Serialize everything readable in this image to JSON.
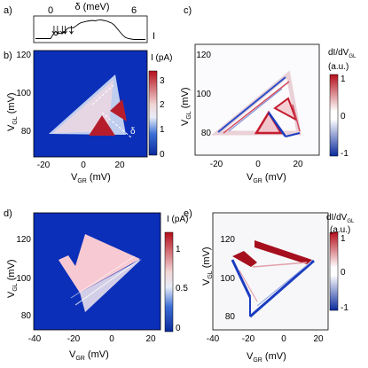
{
  "panels": {
    "a": {
      "label": "a)",
      "xlabel": "δ (meV)",
      "tick_left": "0",
      "tick_right": "6",
      "ylabel": "I",
      "chart_data": {
        "type": "line",
        "xlim": [
          0,
          6
        ],
        "x": [
          0,
          0.2,
          0.4,
          0.6,
          0.8,
          1.0,
          1.2,
          1.4,
          1.6,
          1.8,
          2.0,
          2.2,
          2.4,
          2.6,
          2.8,
          3.0,
          3.2,
          3.4,
          3.6,
          3.8,
          4.0,
          4.2,
          4.4,
          4.6,
          4.8,
          5.0,
          5.2,
          5.4,
          5.6,
          5.8,
          6.0
        ],
        "y": [
          0.1,
          0.3,
          0.25,
          0.35,
          0.32,
          0.4,
          0.55,
          0.6,
          0.58,
          0.65,
          0.75,
          0.82,
          0.85,
          0.88,
          0.9,
          0.92,
          0.9,
          0.93,
          0.95,
          0.92,
          0.9,
          0.85,
          0.8,
          0.7,
          0.55,
          0.4,
          0.25,
          0.15,
          0.1,
          0.08,
          0.06
        ],
        "arrows_at": [
          0.25,
          0.5,
          0.85,
          1.05,
          1.5
        ]
      }
    },
    "b": {
      "label": "b)",
      "xlabel": "V",
      "xlabel_sub": "GR",
      "xlabel_unit": " (mV)",
      "ylabel": "V",
      "ylabel_sub": "GL",
      "ylabel_unit": " (mV)",
      "colorbar_title": "I (pA)",
      "annotation": "δ",
      "chart_data": {
        "type": "heatmap",
        "xlim": [
          -28,
          35
        ],
        "ylim": [
          68,
          125
        ],
        "xticks": [
          -20,
          0,
          20
        ],
        "yticks": [
          80,
          100,
          120
        ],
        "colorbar": {
          "min": 0,
          "max": 3.5,
          "ticks": [
            0,
            1,
            2,
            3
          ]
        },
        "background_value": 0.35,
        "regions": [
          {
            "kind": "triangle",
            "points": [
              [
                -17,
                81
              ],
              [
                20,
                111
              ],
              [
                26,
                79
              ]
            ],
            "value": 1.5
          },
          {
            "kind": "triangle",
            "points": [
              [
                3,
                79
              ],
              [
                10,
                89
              ],
              [
                18,
                79
              ]
            ],
            "value": 3.4
          },
          {
            "kind": "triangle",
            "points": [
              [
                16,
                92
              ],
              [
                23,
                98
              ],
              [
                26,
                87
              ]
            ],
            "value": 3.3
          }
        ]
      }
    },
    "c": {
      "label": "c)",
      "xlabel": "V",
      "xlabel_sub": "GR",
      "xlabel_unit": " (mV)",
      "ylabel": "V",
      "ylabel_sub": "GL",
      "ylabel_unit": " (mV)",
      "colorbar_title": "dI/dV",
      "colorbar_title_sub": "GL",
      "colorbar_unit": "(a.u.)",
      "chart_data": {
        "type": "heatmap",
        "xlim": [
          -28,
          35
        ],
        "ylim": [
          68,
          125
        ],
        "xticks": [
          -20,
          0,
          20
        ],
        "yticks": [
          80,
          100,
          120
        ],
        "colorbar": {
          "min": -1,
          "max": 1,
          "ticks": [
            -1,
            0,
            1
          ]
        },
        "background_value": 0,
        "regions": [
          {
            "kind": "triangle-outline",
            "points": [
              [
                -17,
                81
              ],
              [
                20,
                111
              ],
              [
                26,
                79
              ]
            ],
            "value": 0.8
          },
          {
            "kind": "triangle-outline",
            "points": [
              [
                3,
                79
              ],
              [
                10,
                89
              ],
              [
                18,
                79
              ]
            ],
            "value": -0.8
          }
        ]
      }
    },
    "d": {
      "label": "d)",
      "xlabel": "V",
      "xlabel_sub": "GR",
      "xlabel_unit": " (mV)",
      "ylabel": "V",
      "ylabel_sub": "GL",
      "ylabel_unit": " (mV)",
      "colorbar_title": "I (pA)",
      "chart_data": {
        "type": "heatmap",
        "xlim": [
          -40,
          27
        ],
        "ylim": [
          70,
          132
        ],
        "xticks": [
          -40,
          -20,
          0,
          20
        ],
        "yticks": [
          80,
          100,
          120
        ],
        "colorbar": {
          "min": 0,
          "max": 1.3,
          "ticks": [
            0,
            0.5,
            1
          ]
        },
        "background_value": 0.12,
        "regions": [
          {
            "kind": "polygon",
            "points": [
              [
                -27,
                110
              ],
              [
                -15,
                92
              ],
              [
                16,
                108
              ],
              [
                -13,
                124
              ],
              [
                -20,
                110
              ],
              [
                -23,
                122
              ]
            ],
            "value": 1.05
          },
          {
            "kind": "triangle",
            "points": [
              [
                -27,
                110
              ],
              [
                -15,
                92
              ],
              [
                -13,
                80
              ],
              [
                22,
                109
              ]
            ],
            "value": 0.75
          }
        ]
      }
    },
    "e": {
      "label": "e)",
      "xlabel": "V",
      "xlabel_sub": "GR",
      "xlabel_unit": " (mV)",
      "ylabel": "V",
      "ylabel_sub": "GL",
      "ylabel_unit": " (mV)",
      "colorbar_title": "dI/dV",
      "colorbar_title_sub": "GL",
      "colorbar_unit": "(a.u.)",
      "chart_data": {
        "type": "heatmap",
        "xlim": [
          -40,
          27
        ],
        "ylim": [
          70,
          132
        ],
        "xticks": [
          -40,
          -20,
          0,
          20
        ],
        "yticks": [
          80,
          100,
          120
        ],
        "colorbar": {
          "min": -1,
          "max": 1,
          "ticks": [
            -1,
            0,
            1
          ]
        },
        "background_value": 0,
        "regions": [
          {
            "kind": "band",
            "points": [
              [
                -12,
                120
              ],
              [
                22,
                110
              ]
            ],
            "value": 0.95
          },
          {
            "kind": "band",
            "points": [
              [
                -24,
                111
              ],
              [
                -16,
                104
              ]
            ],
            "value": 0.95
          },
          {
            "kind": "band",
            "points": [
              [
                -27,
                110
              ],
              [
                -14,
                79
              ]
            ],
            "value": -0.9
          },
          {
            "kind": "band",
            "points": [
              [
                -14,
                79
              ],
              [
                22,
                110
              ]
            ],
            "value": -0.85
          }
        ]
      }
    }
  }
}
